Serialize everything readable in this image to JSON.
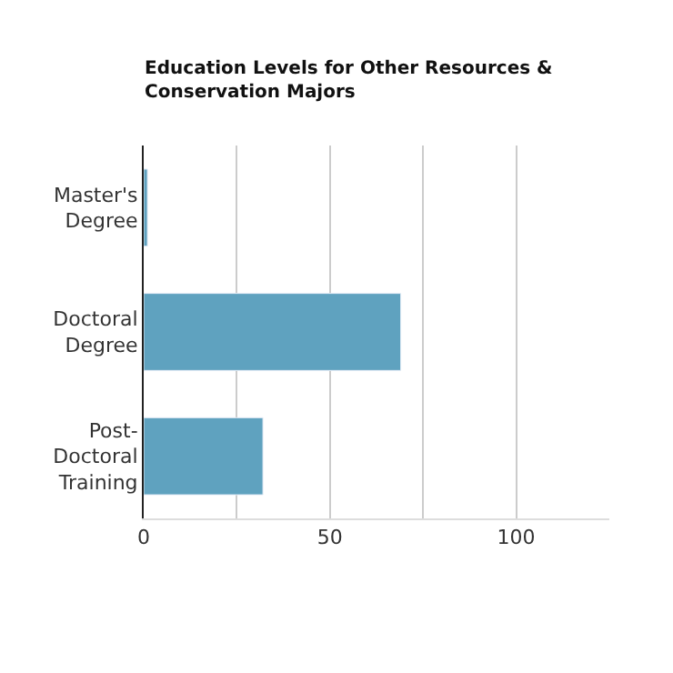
{
  "chart_data": {
    "type": "bar",
    "orientation": "horizontal",
    "title": "Education Levels for Other Resources &\nConservation Majors",
    "categories": [
      "Master's\nDegree",
      "Doctoral\nDegree",
      "Post-\nDoctoral\nTraining"
    ],
    "values": [
      1,
      69,
      32
    ],
    "color": "#5fa2bf",
    "xlim": [
      0,
      125
    ],
    "xticks": [
      0,
      {
        "value": 25,
        "label": null
      },
      50,
      {
        "value": 75,
        "label": null
      },
      100
    ],
    "grid": "x"
  }
}
